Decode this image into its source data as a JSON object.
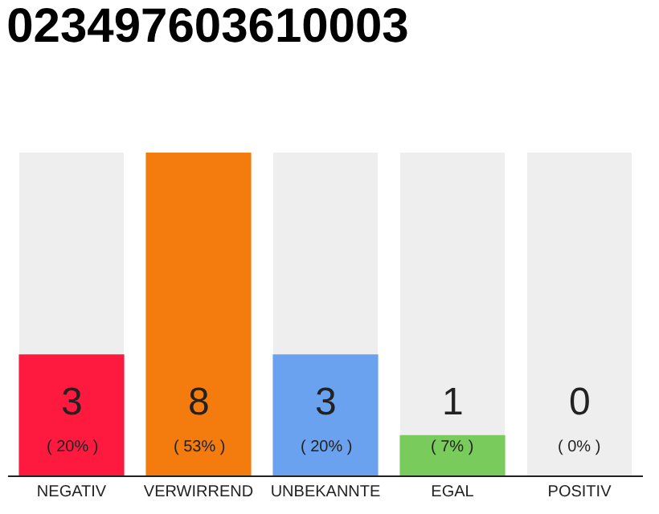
{
  "chart_data": {
    "type": "bar",
    "title": "023497603610003",
    "categories": [
      "NEGATIV",
      "VERWIRREND",
      "UNBEKANNTE",
      "EGAL",
      "POSITIV"
    ],
    "values": [
      3,
      8,
      3,
      1,
      0
    ],
    "colors": [
      "#fe1a3e",
      "#f47c0e",
      "#6aa2ef",
      "#79cb5b",
      "#dcdcdc"
    ],
    "value_labels": [
      "3\n( 20% )",
      "8\n( 53% )",
      "3\n( 20% )",
      "1\n( 7% )",
      "0\n( 0% )"
    ],
    "ylim": [
      0,
      8
    ],
    "tick_labels": "x",
    "grid": false,
    "legend": false
  }
}
